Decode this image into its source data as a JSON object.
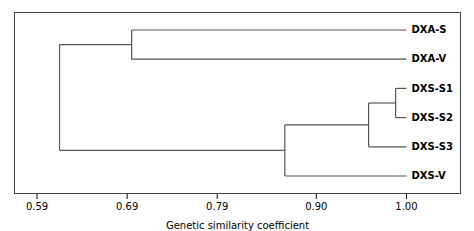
{
  "chart_data": {
    "type": "dendrogram",
    "xlabel": "Genetic similarity coefficient",
    "color": "#555555",
    "xlim": [
      0.565,
      1.06
    ],
    "xticks": [
      0.59,
      0.69,
      0.79,
      {
        "value": 0.9,
        "label": "0.90"
      },
      {
        "value": 1.0,
        "label": "1.00"
      }
    ],
    "grid": false,
    "tree": {
      "value": 0.615,
      "children": [
        {
          "value": 0.695,
          "children": [
            {
              "name": "DXA-S",
              "value": 1.0
            },
            {
              "name": "DXA-V",
              "value": 1.0
            }
          ]
        },
        {
          "value": 0.865,
          "children": [
            {
              "value": 0.958,
              "children": [
                {
                  "value": 0.988,
                  "children": [
                    {
                      "name": "DXS-S1",
                      "value": 1.0
                    },
                    {
                      "name": "DXS-S2",
                      "value": 1.0
                    }
                  ]
                },
                {
                  "name": "DXS-S3",
                  "value": 1.0
                }
              ]
            },
            {
              "name": "DXS-V",
              "value": 1.0
            }
          ]
        }
      ]
    }
  }
}
